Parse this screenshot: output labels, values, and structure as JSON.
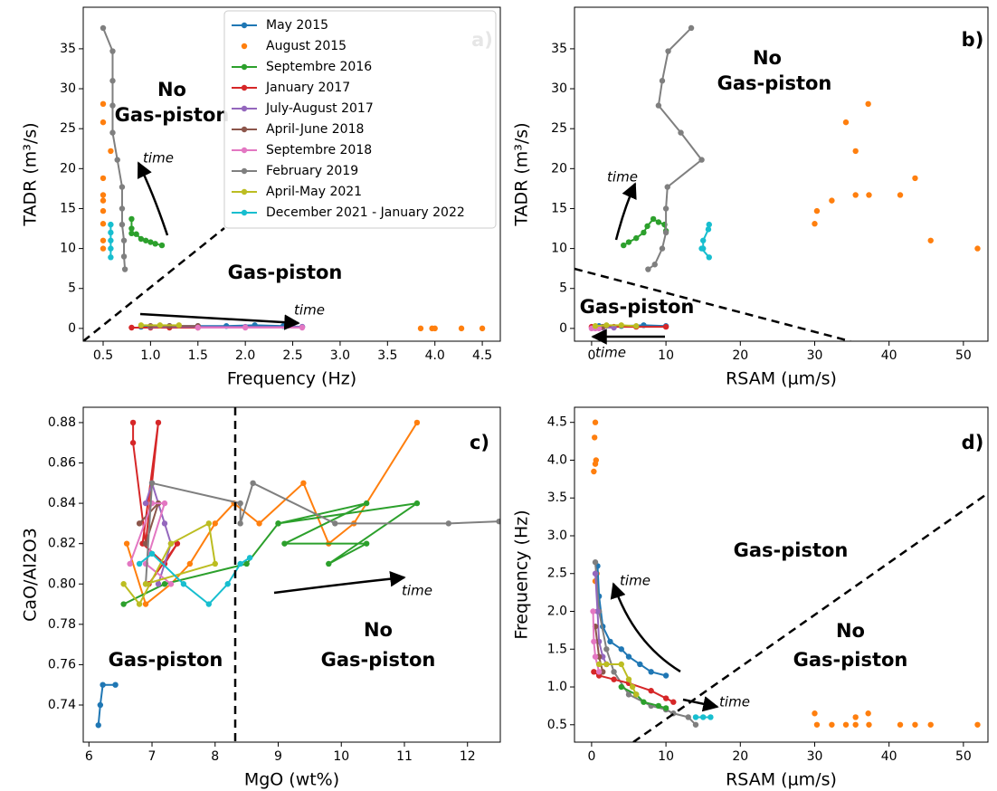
{
  "chart_data": [
    {
      "type": "scatter",
      "xlabel": "Frequency (Hz)",
      "ylabel": "TADR (m³/s)",
      "annotations": [
        "a)",
        "No",
        "Gas-piston",
        "time",
        "Gas-piston",
        "time"
      ],
      "xlim": [
        0.29,
        4.69
      ],
      "ylim": [
        -1.6,
        40.2
      ],
      "xticks": [
        0.5,
        {
          "value": 1,
          "label": "1.0"
        },
        1.5,
        {
          "value": 2,
          "label": "2.0"
        },
        2.5,
        {
          "value": 3,
          "label": "3.0"
        },
        3.5,
        {
          "value": 4,
          "label": "4.0"
        },
        4.5
      ],
      "yticks": [
        0,
        5,
        10,
        15,
        20,
        25,
        30,
        35
      ],
      "legend": "upper right",
      "series": [
        {
          "name": "May 2015",
          "color": "#1f77b4",
          "line": true,
          "x": [
            0.9,
            1.2,
            1.5,
            1.8,
            2.1,
            2.4,
            2.6
          ],
          "y": [
            0.2,
            0.3,
            0.3,
            0.3,
            0.4,
            0.3,
            0.2
          ]
        },
        {
          "name": "August 2015",
          "color": "#ff7f0e",
          "line": false,
          "x": [
            0.5,
            0.5,
            0.58,
            0.5,
            0.5,
            0.5,
            0.5,
            0.5,
            0.5,
            0.5,
            3.85,
            3.97,
            4.0,
            4.28,
            4.5
          ],
          "y": [
            28.1,
            25.8,
            22.2,
            18.8,
            16.7,
            16.0,
            14.7,
            13.1,
            11.0,
            10.0,
            0,
            0,
            0,
            0,
            0
          ]
        },
        {
          "name": "Septembre 2016",
          "color": "#2ca02c",
          "line": true,
          "x": [
            0.8,
            0.8,
            0.8,
            0.85,
            0.9,
            0.95,
            1.0,
            1.05,
            1.12
          ],
          "y": [
            13.7,
            12.5,
            11.9,
            11.8,
            11.2,
            11.0,
            10.8,
            10.6,
            10.4
          ]
        },
        {
          "name": "January 2017",
          "color": "#d62728",
          "line": true,
          "x": [
            0.8,
            1.0,
            1.2,
            1.5
          ],
          "y": [
            0.1,
            0.1,
            0.1,
            0.1
          ]
        },
        {
          "name": "July-August 2017",
          "color": "#9467bd",
          "line": true,
          "x": [
            1.0,
            1.5,
            2.0,
            2.6
          ],
          "y": [
            0.2,
            0.2,
            0.2,
            0.2
          ]
        },
        {
          "name": "April-June 2018",
          "color": "#8c564b",
          "line": true,
          "x": [
            1.0,
            1.2,
            1.5
          ],
          "y": [
            0.3,
            0.3,
            0.3
          ]
        },
        {
          "name": "Septembre 2018",
          "color": "#e377c2",
          "line": true,
          "x": [
            1.5,
            2.0,
            2.6
          ],
          "y": [
            0.1,
            0.1,
            0.1
          ]
        },
        {
          "name": "February 2019",
          "color": "#7f7f7f",
          "line": true,
          "x": [
            0.5,
            0.6,
            0.6,
            0.6,
            0.6,
            0.65,
            0.7,
            0.7,
            0.7,
            0.72,
            0.72,
            0.73
          ],
          "y": [
            37.6,
            34.7,
            31,
            27.9,
            24.5,
            21.1,
            17.7,
            15,
            13,
            11,
            9,
            7.4
          ]
        },
        {
          "name": "April-May 2021",
          "color": "#bcbd22",
          "line": true,
          "x": [
            0.9,
            1.1,
            1.3
          ],
          "y": [
            0.4,
            0.4,
            0.4
          ]
        },
        {
          "name": "December 2021 - January 2022",
          "color": "#17becf",
          "line": true,
          "x": [
            0.58,
            0.58,
            0.58,
            0.58,
            0.58
          ],
          "y": [
            8.9,
            10,
            11,
            12,
            13
          ]
        }
      ]
    },
    {
      "type": "scatter",
      "xlabel": "RSAM (µm/s)",
      "ylabel": "TADR (m³/s)",
      "annotations": [
        "b)",
        "No",
        "Gas-piston",
        "time",
        "Gas-piston",
        "time"
      ],
      "xlim": [
        -2.3,
        53.3
      ],
      "ylim": [
        -1.6,
        40.2
      ],
      "xticks": [
        0,
        10,
        20,
        30,
        40,
        50
      ],
      "yticks": [
        0,
        5,
        10,
        15,
        20,
        25,
        30,
        35
      ],
      "series": [
        {
          "color": "#1f77b4",
          "line": true,
          "x": [
            1,
            4,
            7,
            10
          ],
          "y": [
            0.3,
            0.3,
            0.4,
            0.3
          ]
        },
        {
          "color": "#ff7f0e",
          "line": false,
          "x": [
            34.2,
            37.2,
            35.5,
            43.5,
            35.5,
            37.3,
            41.5,
            32.3,
            30.3,
            30.0,
            45.6,
            51.9
          ],
          "y": [
            25.8,
            28.1,
            22.2,
            18.8,
            16.7,
            16.7,
            16.7,
            16.0,
            14.7,
            13.1,
            11.0,
            10.0
          ]
        },
        {
          "color": "#2ca02c",
          "line": true,
          "x": [
            4.3,
            5,
            6,
            7,
            7.5,
            8.3,
            9,
            9.8,
            10
          ],
          "y": [
            10.4,
            10.8,
            11.3,
            12,
            12.8,
            13.7,
            13.3,
            13,
            12.2
          ]
        },
        {
          "color": "#d62728",
          "line": true,
          "x": [
            0,
            3,
            6,
            10
          ],
          "y": [
            0.2,
            0.2,
            0.2,
            0.2
          ]
        },
        {
          "color": "#9467bd",
          "line": true,
          "x": [
            0.5,
            1.5,
            3
          ],
          "y": [
            0.1,
            0.1,
            0.1
          ]
        },
        {
          "color": "#8c564b",
          "line": true,
          "x": [
            0.5,
            1.5
          ],
          "y": [
            0.2,
            0.2
          ]
        },
        {
          "color": "#e377c2",
          "line": true,
          "x": [
            0,
            0.5,
            1
          ],
          "y": [
            0,
            0,
            0
          ]
        },
        {
          "color": "#7f7f7f",
          "line": true,
          "x": [
            13.4,
            10.3,
            9.5,
            9,
            12,
            14.8,
            10.2,
            10,
            10,
            9.5,
            8.5,
            7.6
          ],
          "y": [
            37.6,
            34.7,
            31,
            27.9,
            24.5,
            21.1,
            17.7,
            15,
            12,
            10,
            8,
            7.4
          ]
        },
        {
          "color": "#bcbd22",
          "line": true,
          "x": [
            0.5,
            2,
            4,
            6
          ],
          "y": [
            0.3,
            0.4,
            0.4,
            0.3
          ]
        },
        {
          "color": "#17becf",
          "line": true,
          "x": [
            15.8,
            14.8,
            15,
            15,
            15.7,
            15.8
          ],
          "y": [
            8.9,
            10,
            10,
            11,
            12.4,
            13
          ]
        }
      ]
    },
    {
      "type": "line",
      "xlabel": "MgO (wt%)",
      "ylabel": "CaO/Al2O3",
      "annotations": [
        "c)",
        "Gas-piston",
        "No",
        "Gas-piston",
        "time"
      ],
      "xlim": [
        5.91,
        12.52
      ],
      "ylim": [
        0.7216,
        0.8876
      ],
      "xticks": [
        6,
        7,
        8,
        9,
        10,
        11,
        12
      ],
      "yticks": [
        0.74,
        0.76,
        0.78,
        {
          "value": 0.8,
          "label": "0.80"
        },
        0.82,
        0.84,
        0.86,
        0.88
      ],
      "series": [
        {
          "color": "#1f77b4",
          "line": true,
          "x": [
            6.15,
            6.18,
            6.22,
            6.42
          ],
          "y": [
            0.73,
            0.74,
            0.75,
            0.75
          ]
        },
        {
          "color": "#ff7f0e",
          "line": true,
          "x": [
            6.6,
            6.9,
            7.3,
            7.6,
            8.0,
            8.3,
            8.7,
            9.4,
            9.8,
            10.2,
            11.2
          ],
          "y": [
            0.82,
            0.79,
            0.8,
            0.81,
            0.83,
            0.84,
            0.83,
            0.85,
            0.82,
            0.83,
            0.88
          ]
        },
        {
          "color": "#2ca02c",
          "line": true,
          "x": [
            6.55,
            7.2,
            8.5,
            9.0,
            10.4,
            9.1,
            10.4,
            9.8,
            11.2,
            9.0
          ],
          "y": [
            0.79,
            0.8,
            0.81,
            0.83,
            0.84,
            0.82,
            0.82,
            0.81,
            0.84,
            0.83
          ]
        },
        {
          "color": "#d62728",
          "line": true,
          "x": [
            6.7,
            6.7,
            6.9,
            7.1,
            6.85,
            7.2,
            7.4,
            6.95
          ],
          "y": [
            0.88,
            0.87,
            0.82,
            0.88,
            0.82,
            0.81,
            0.82,
            0.8
          ]
        },
        {
          "color": "#9467bd",
          "line": true,
          "x": [
            6.9,
            7.0,
            7.2,
            7.3,
            7.1
          ],
          "y": [
            0.84,
            0.85,
            0.83,
            0.82,
            0.8
          ]
        },
        {
          "color": "#8c564b",
          "line": true,
          "x": [
            6.8,
            7.1,
            6.9
          ],
          "y": [
            0.83,
            0.84,
            0.82
          ]
        },
        {
          "color": "#e377c2",
          "line": true,
          "x": [
            6.65,
            7.0,
            7.2,
            6.9,
            7.3
          ],
          "y": [
            0.81,
            0.84,
            0.84,
            0.81,
            0.8
          ]
        },
        {
          "color": "#7f7f7f",
          "line": true,
          "x": [
            6.9,
            7.0,
            8.4,
            8.4,
            8.6,
            9.9,
            11.7,
            12.5
          ],
          "y": [
            0.8,
            0.85,
            0.84,
            0.83,
            0.85,
            0.83,
            0.83,
            0.831
          ]
        },
        {
          "color": "#bcbd22",
          "line": true,
          "x": [
            6.55,
            6.8,
            7.3,
            7.9,
            8.0,
            6.9
          ],
          "y": [
            0.8,
            0.79,
            0.82,
            0.83,
            0.81,
            0.8
          ]
        },
        {
          "color": "#17becf",
          "line": true,
          "x": [
            6.8,
            7.0,
            7.5,
            7.9,
            8.2,
            8.4,
            8.55
          ],
          "y": [
            0.81,
            0.815,
            0.8,
            0.79,
            0.8,
            0.81,
            0.813
          ]
        }
      ]
    },
    {
      "type": "scatter",
      "xlabel": "RSAM (µm/s)",
      "ylabel": "Frequency (Hz)",
      "annotations": [
        "d)",
        "Gas-piston",
        "No",
        "Gas-piston",
        "time",
        "time"
      ],
      "xlim": [
        -2.3,
        53.3
      ],
      "ylim": [
        0.27,
        4.7
      ],
      "xticks": [
        0,
        10,
        20,
        30,
        40,
        50
      ],
      "yticks": [
        0.5,
        {
          "value": 1,
          "label": "1.0"
        },
        1.5,
        {
          "value": 2,
          "label": "2.0"
        },
        2.5,
        {
          "value": 3,
          "label": "3.0"
        },
        3.5,
        {
          "value": 4,
          "label": "4.0"
        },
        4.5
      ],
      "series": [
        {
          "color": "#ff7f0e",
          "line": false,
          "x": [
            0.5,
            0.4,
            0.6,
            0.5,
            0.3,
            0.7,
            0.5,
            30,
            30.3,
            32.3,
            34.2,
            35.5,
            35.5,
            37.2,
            37.3,
            41.5,
            43.5,
            45.6,
            51.9
          ],
          "y": [
            4.5,
            4.3,
            4.0,
            3.95,
            3.85,
            2.5,
            2.4,
            0.65,
            0.5,
            0.5,
            0.5,
            0.6,
            0.5,
            0.65,
            0.5,
            0.5,
            0.5,
            0.5,
            0.5
          ]
        },
        {
          "color": "#1f77b4",
          "line": true,
          "x": [
            0.8,
            1,
            1.5,
            2.5,
            4,
            5,
            6.5,
            8,
            10
          ],
          "y": [
            2.6,
            2.2,
            1.8,
            1.6,
            1.5,
            1.4,
            1.3,
            1.2,
            1.15
          ]
        },
        {
          "color": "#7f7f7f",
          "line": true,
          "x": [
            0.5,
            1,
            2,
            3,
            5,
            8,
            10,
            11,
            13,
            14
          ],
          "y": [
            2.65,
            2.0,
            1.5,
            1.2,
            0.9,
            0.75,
            0.7,
            0.65,
            0.6,
            0.5
          ]
        },
        {
          "color": "#d62728",
          "line": true,
          "x": [
            0.3,
            1,
            3,
            5,
            8,
            10,
            11
          ],
          "y": [
            1.2,
            1.15,
            1.1,
            1.05,
            0.95,
            0.85,
            0.8
          ]
        },
        {
          "color": "#2ca02c",
          "line": true,
          "x": [
            4,
            6,
            7,
            9,
            10
          ],
          "y": [
            1.0,
            0.9,
            0.8,
            0.75,
            0.72
          ]
        },
        {
          "color": "#9467bd",
          "line": true,
          "x": [
            0.5,
            0.8,
            1,
            1.5,
            2
          ],
          "y": [
            2.5,
            2.0,
            1.6,
            1.4,
            1.3
          ]
        },
        {
          "color": "#8c564b",
          "line": true,
          "x": [
            0.5,
            1,
            1.5
          ],
          "y": [
            1.8,
            1.4,
            1.2
          ]
        },
        {
          "color": "#e377c2",
          "line": true,
          "x": [
            0.2,
            0.3,
            0.5,
            1
          ],
          "y": [
            2.0,
            1.6,
            1.4,
            1.2
          ]
        },
        {
          "color": "#bcbd22",
          "line": true,
          "x": [
            1,
            2,
            4,
            5,
            5.5,
            6
          ],
          "y": [
            1.3,
            1.3,
            1.3,
            1.1,
            1.0,
            0.9
          ]
        },
        {
          "color": "#17becf",
          "line": true,
          "x": [
            14,
            15,
            16
          ],
          "y": [
            0.6,
            0.6,
            0.6
          ]
        }
      ]
    }
  ]
}
